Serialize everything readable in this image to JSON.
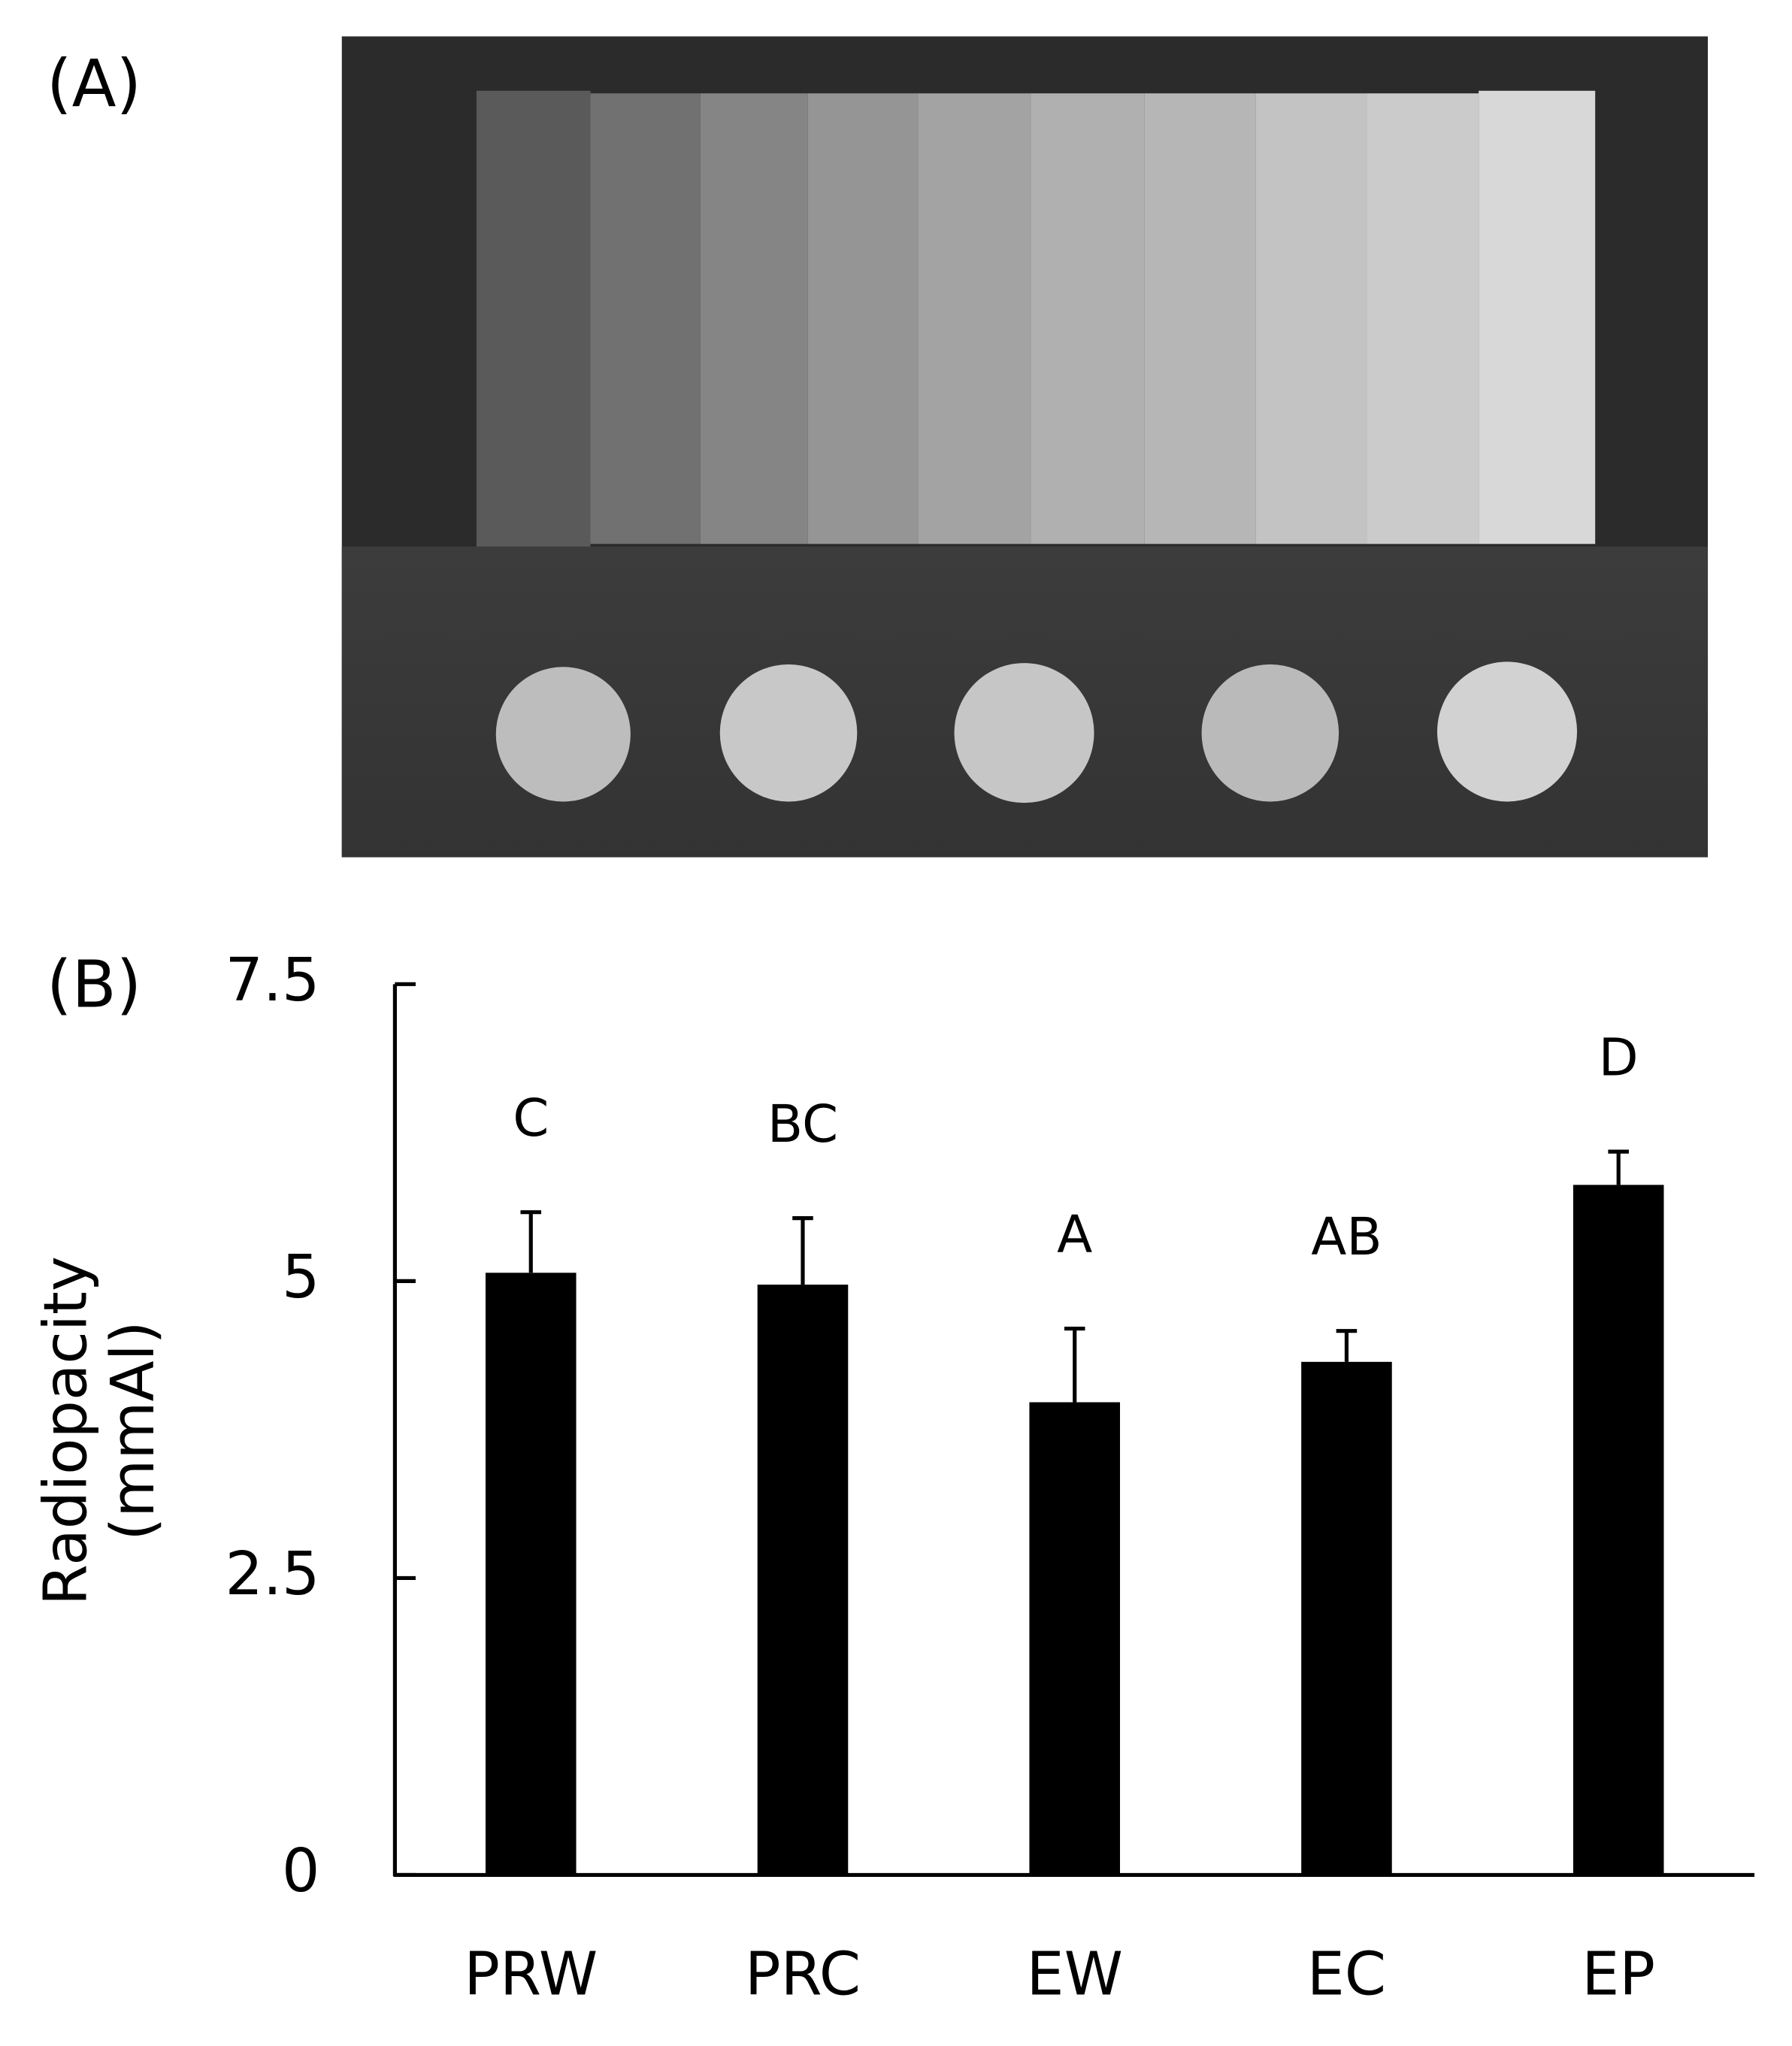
{
  "panel_labels": [
    "(A)",
    "(B)"
  ],
  "chart_data": {
    "type": "bar",
    "categories": [
      "PRW",
      "PRC",
      "EW",
      "EC",
      "EP"
    ],
    "values": [
      5.07,
      4.97,
      3.98,
      4.32,
      5.81
    ],
    "errors": [
      0.51,
      0.56,
      0.62,
      0.26,
      0.28
    ],
    "annotations": [
      "C",
      "BC",
      "A",
      "AB",
      "D"
    ],
    "ylabel": [
      "Radiopacity",
      "(mmAl)"
    ],
    "color": "#000000",
    "ylim": [
      0,
      7.5
    ],
    "yticks": [
      0,
      2.5,
      5,
      7.5
    ],
    "grid": false
  }
}
